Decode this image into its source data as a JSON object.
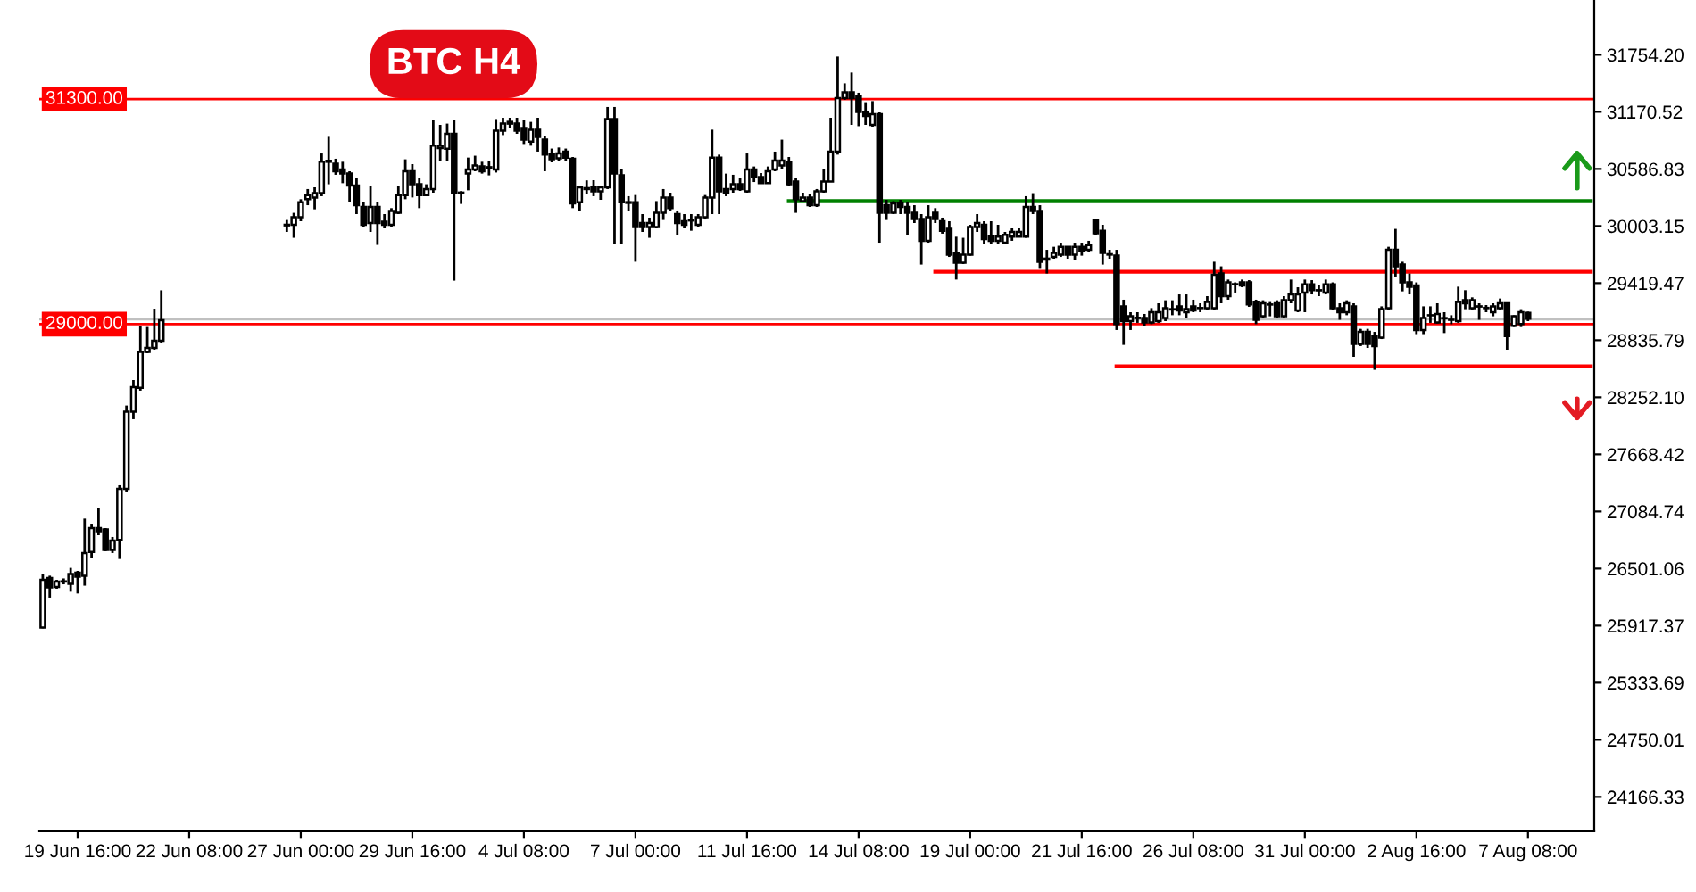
{
  "chart_data": {
    "type": "candlestick",
    "title": "BTC H4",
    "categories": [
      null,
      null,
      null,
      null,
      null,
      "19 Jun 16:00",
      null,
      null,
      null,
      null,
      null,
      null,
      null,
      null,
      null,
      null,
      null,
      null,
      null,
      null,
      null,
      "22 Jun 08:00",
      null,
      null,
      null,
      null,
      null,
      null,
      null,
      null,
      null,
      null,
      null,
      null,
      null,
      null,
      null,
      "27 Jun 00:00",
      null,
      null,
      null,
      null,
      null,
      null,
      null,
      null,
      null,
      null,
      null,
      null,
      null,
      null,
      null,
      "29 Jun 16:00",
      null,
      null,
      null,
      null,
      null,
      null,
      null,
      null,
      null,
      null,
      null,
      null,
      null,
      null,
      null,
      "4 Jul 08:00",
      null,
      null,
      null,
      null,
      null,
      null,
      null,
      null,
      null,
      null,
      null,
      null,
      null,
      null,
      null,
      "7 Jul 00:00",
      null,
      null,
      null,
      null,
      null,
      null,
      null,
      null,
      null,
      null,
      null,
      null,
      null,
      null,
      null,
      "11 Jul 16:00",
      null,
      null,
      null,
      null,
      null,
      null,
      null,
      null,
      null,
      null,
      null,
      null,
      null,
      null,
      null,
      "14 Jul 08:00",
      null,
      null,
      null,
      null,
      null,
      null,
      null,
      null,
      null,
      null,
      null,
      null,
      null,
      null,
      null,
      "19 Jul 00:00",
      null,
      null,
      null,
      null,
      null,
      null,
      null,
      null,
      null,
      null,
      null,
      null,
      null,
      null,
      null,
      "21 Jul 16:00",
      null,
      null,
      null,
      null,
      null,
      null,
      null,
      null,
      null,
      null,
      null,
      null,
      null,
      null,
      null,
      "26 Jul 08:00",
      null,
      null,
      null,
      null,
      null,
      null,
      null,
      null,
      null,
      null,
      null,
      null,
      null,
      null,
      null,
      "31 Jul 00:00",
      null,
      null,
      null,
      null,
      null,
      null,
      null,
      null,
      null,
      null,
      null,
      null,
      null,
      null,
      null,
      "2 Aug 16:00",
      null,
      null,
      null,
      null,
      null,
      null,
      null,
      null,
      null,
      null,
      null,
      null,
      null,
      null,
      null,
      "7 Aug 08:00",
      null,
      null,
      null,
      null,
      null,
      null,
      null,
      null,
      null
    ],
    "series": [
      {
        "color": "#000000",
        "ohlc": [
          [
            25899,
            26446,
            25890,
            26386
          ],
          [
            26404,
            26428,
            26204,
            26308
          ],
          [
            26313,
            26386,
            26295,
            26368
          ],
          [
            26368,
            26400,
            26340,
            26370
          ],
          [
            26344,
            26508,
            26264,
            26446
          ],
          [
            26459,
            26477,
            26246,
            26417
          ],
          [
            26428,
            27012,
            26326,
            26660
          ],
          [
            26672,
            26951,
            26605,
            26915
          ],
          [
            26915,
            27116,
            26842,
            26884
          ],
          [
            26902,
            26915,
            26679,
            26691
          ],
          [
            26691,
            26824,
            26660,
            26787
          ],
          [
            26793,
            27353,
            26599,
            27316
          ],
          [
            27316,
            28168,
            27280,
            28106
          ],
          [
            28106,
            28429,
            28028,
            28356
          ],
          [
            28350,
            28982,
            28320,
            28715
          ],
          [
            28715,
            28971,
            28703,
            28757
          ],
          [
            28757,
            29158,
            28739,
            28830
          ],
          [
            28830,
            29346,
            28812,
            29040
          ],
          null,
          null,
          null,
          null,
          null,
          null,
          null,
          null,
          null,
          null,
          null,
          null,
          null,
          null,
          null,
          null,
          null,
          [
            30010,
            30065,
            29943,
            30016
          ],
          [
            30016,
            30138,
            29883,
            30094
          ],
          [
            30094,
            30277,
            30052,
            30247
          ],
          [
            30277,
            30381,
            30216,
            30320
          ],
          [
            30295,
            30399,
            30174,
            30339
          ],
          [
            30339,
            30745,
            30308,
            30660
          ],
          [
            30660,
            30915,
            30430,
            30670
          ],
          [
            30641,
            30691,
            30527,
            30563
          ],
          [
            30581,
            30660,
            30441,
            30539
          ],
          [
            30539,
            30563,
            30247,
            30417
          ],
          [
            30417,
            30490,
            30125,
            30216
          ],
          [
            30198,
            30247,
            29992,
            30016
          ],
          [
            30034,
            30417,
            29943,
            30198
          ],
          [
            30198,
            30253,
            29810,
            30034
          ],
          [
            30047,
            30125,
            29979,
            30016
          ],
          [
            30016,
            30186,
            29992,
            30156
          ],
          [
            30138,
            30417,
            30125,
            30320
          ],
          [
            30320,
            30685,
            30277,
            30563
          ],
          [
            30563,
            30636,
            30295,
            30430
          ],
          [
            30430,
            30490,
            30186,
            30320
          ],
          [
            30320,
            30430,
            30308,
            30381
          ],
          [
            30381,
            31086,
            30344,
            30824
          ],
          [
            30800,
            31037,
            30672,
            30824
          ],
          [
            30794,
            31050,
            30672,
            30946
          ],
          [
            30946,
            31092,
            29445,
            30339
          ],
          [
            30339,
            30360,
            30229,
            30345
          ],
          [
            30539,
            30703,
            30368,
            30581
          ],
          [
            30581,
            30722,
            30563,
            30623
          ],
          [
            30612,
            30660,
            30539,
            30563
          ],
          [
            30599,
            30672,
            30521,
            30605
          ],
          [
            30581,
            31097,
            30550,
            30977
          ],
          [
            30977,
            31110,
            30933,
            31050
          ],
          [
            31068,
            31110,
            31010,
            31050
          ],
          [
            31050,
            31110,
            30946,
            30977
          ],
          [
            31006,
            31092,
            30842,
            30886
          ],
          [
            30867,
            31068,
            30824,
            30988
          ],
          [
            30988,
            31110,
            30764,
            30915
          ],
          [
            30886,
            30928,
            30563,
            30733
          ],
          [
            30733,
            30795,
            30654,
            30685
          ],
          [
            30696,
            30806,
            30672,
            30745
          ],
          [
            30764,
            30795,
            30672,
            30703
          ],
          [
            30691,
            30709,
            30186,
            30235
          ],
          [
            30247,
            30417,
            30156,
            30399
          ],
          [
            30381,
            30470,
            30330,
            30390
          ],
          [
            30399,
            30472,
            30308,
            30357
          ],
          [
            30357,
            30417,
            30271,
            30399
          ],
          [
            30399,
            31220,
            30381,
            31097
          ],
          [
            31097,
            31220,
            29821,
            30539
          ],
          [
            30521,
            30581,
            29821,
            30247
          ],
          [
            30247,
            30308,
            30156,
            30240
          ],
          [
            30247,
            30320,
            29638,
            29992
          ],
          [
            30034,
            30125,
            29943,
            29992
          ],
          [
            29992,
            30089,
            29883,
            30034
          ],
          [
            29992,
            30258,
            29979,
            30138
          ],
          [
            30138,
            30381,
            30065,
            30295
          ],
          [
            30295,
            30344,
            30162,
            30186
          ],
          [
            30125,
            30162,
            29912,
            30034
          ],
          [
            30052,
            30125,
            29979,
            30016
          ],
          [
            30065,
            30125,
            29955,
            30060
          ],
          [
            30016,
            30125,
            29992,
            30094
          ],
          [
            30094,
            30320,
            30070,
            30295
          ],
          [
            30295,
            30988,
            30125,
            30703
          ],
          [
            30703,
            30733,
            30125,
            30357
          ],
          [
            30381,
            30539,
            30308,
            30339
          ],
          [
            30381,
            30527,
            30344,
            30430
          ],
          [
            30430,
            30490,
            30362,
            30381
          ],
          [
            30357,
            30745,
            30344,
            30581
          ],
          [
            30581,
            30612,
            30453,
            30503
          ],
          [
            30503,
            30545,
            30435,
            30441
          ],
          [
            30441,
            30612,
            30435,
            30563
          ],
          [
            30581,
            30764,
            30563,
            30672
          ],
          [
            30623,
            30886,
            30581,
            30672
          ],
          [
            30660,
            30709,
            30417,
            30430
          ],
          [
            30459,
            30490,
            30138,
            30277
          ],
          [
            30258,
            30344,
            30247,
            30295
          ],
          [
            30295,
            30326,
            30198,
            30216
          ],
          [
            30216,
            30381,
            30198,
            30357
          ],
          [
            30357,
            30581,
            30344,
            30459
          ],
          [
            30459,
            31110,
            30453,
            30764
          ],
          [
            30764,
            31736,
            30733,
            31311
          ],
          [
            31311,
            31462,
            31293,
            31371
          ],
          [
            31371,
            31572,
            31037,
            31311
          ],
          [
            31329,
            31366,
            31024,
            31170
          ],
          [
            31170,
            31269,
            31037,
            31128
          ],
          [
            31037,
            31280,
            31019,
            31147
          ],
          [
            31147,
            31165,
            29833,
            30138
          ],
          [
            30216,
            30271,
            30065,
            30138
          ],
          [
            30138,
            30258,
            30125,
            30235
          ],
          [
            30235,
            30271,
            30125,
            30198
          ],
          [
            30198,
            30253,
            29912,
            30138
          ],
          [
            30138,
            30216,
            30034,
            30076
          ],
          [
            30076,
            30125,
            29609,
            29852
          ],
          [
            29852,
            30216,
            29833,
            30094
          ],
          [
            30138,
            30186,
            30034,
            30076
          ],
          [
            30052,
            30089,
            29925,
            29955
          ],
          [
            29974,
            30052,
            29687,
            29711
          ],
          [
            29729,
            29894,
            29456,
            29627
          ],
          [
            29627,
            29883,
            29615,
            29711
          ],
          [
            29711,
            30016,
            29700,
            29992
          ],
          [
            29992,
            30125,
            29943,
            30034
          ],
          [
            30016,
            30052,
            29821,
            29870
          ],
          [
            29894,
            30052,
            29815,
            29852
          ],
          [
            29852,
            30016,
            29815,
            29894
          ],
          [
            29834,
            29943,
            29815,
            29912
          ],
          [
            29894,
            29979,
            29852,
            29943
          ],
          [
            29894,
            29979,
            29888,
            29943
          ],
          [
            29894,
            30308,
            29883,
            30198
          ],
          [
            30198,
            30339,
            30125,
            30156
          ],
          [
            30156,
            30216,
            29565,
            29638
          ],
          [
            29670,
            29760,
            29518,
            29660
          ],
          [
            29687,
            29791,
            29669,
            29729
          ],
          [
            29711,
            29833,
            29687,
            29791
          ],
          [
            29791,
            29797,
            29669,
            29711
          ],
          [
            29711,
            29833,
            29651,
            29791
          ],
          [
            29791,
            29833,
            29700,
            29748
          ],
          [
            29760,
            29852,
            29742,
            29809
          ],
          [
            30065,
            30076,
            29906,
            29930
          ],
          [
            29955,
            30016,
            29609,
            29729
          ],
          [
            29711,
            29760,
            29669,
            29715
          ],
          [
            29700,
            29760,
            28940,
            29000
          ],
          [
            29182,
            29250,
            28788,
            29031
          ],
          [
            29031,
            29122,
            28940,
            29080
          ],
          [
            29062,
            29122,
            29013,
            29065
          ],
          [
            29062,
            29104,
            28976,
            29018
          ],
          [
            29018,
            29164,
            29000,
            29122
          ],
          [
            29031,
            29213,
            29013,
            29122
          ],
          [
            29062,
            29244,
            29031,
            29164
          ],
          [
            29150,
            29244,
            29091,
            29153
          ],
          [
            29182,
            29304,
            29091,
            29140
          ],
          [
            29122,
            29304,
            29062,
            29153
          ],
          [
            29182,
            29250,
            29122,
            29140
          ],
          [
            29165,
            29213,
            29122,
            29164
          ],
          [
            29164,
            29286,
            29140,
            29226
          ],
          [
            29164,
            29638,
            29140,
            29505
          ],
          [
            29518,
            29591,
            29213,
            29286
          ],
          [
            29286,
            29456,
            29250,
            29427
          ],
          [
            29409,
            29427,
            29323,
            29408
          ],
          [
            29427,
            29456,
            29377,
            29396
          ],
          [
            29427,
            29450,
            29177,
            29201
          ],
          [
            29226,
            29250,
            29000,
            29044
          ],
          [
            29080,
            29244,
            29062,
            29213
          ],
          [
            29200,
            29226,
            29080,
            29201
          ],
          [
            29213,
            29244,
            29067,
            29080
          ],
          [
            29080,
            29286,
            29062,
            29244
          ],
          [
            29244,
            29456,
            29213,
            29304
          ],
          [
            29140,
            29377,
            29122,
            29304
          ],
          [
            29323,
            29456,
            29122,
            29408
          ],
          [
            29408,
            29450,
            29304,
            29347
          ],
          [
            29347,
            29396,
            29286,
            29345
          ],
          [
            29323,
            29456,
            29304,
            29408
          ],
          [
            29408,
            29427,
            29140,
            29164
          ],
          [
            29164,
            29213,
            29044,
            29122
          ],
          [
            29122,
            29244,
            29091,
            29213
          ],
          [
            29182,
            29213,
            28666,
            28799
          ],
          [
            28799,
            28952,
            28776,
            28921
          ],
          [
            28921,
            28952,
            28757,
            28799
          ],
          [
            28879,
            28921,
            28533,
            28776
          ],
          [
            28861,
            29182,
            28848,
            29153
          ],
          [
            29164,
            29791,
            29140,
            29760
          ],
          [
            29760,
            29974,
            29487,
            29591
          ],
          [
            29609,
            29638,
            29335,
            29427
          ],
          [
            29427,
            29518,
            29304,
            29383
          ],
          [
            29396,
            29427,
            28898,
            28940
          ],
          [
            28940,
            29182,
            28898,
            29062
          ],
          [
            29090,
            29182,
            29013,
            29091
          ],
          [
            29018,
            29213,
            29007,
            29104
          ],
          [
            29062,
            29122,
            28909,
            29060
          ],
          [
            29044,
            29091,
            29000,
            29045
          ],
          [
            29031,
            29383,
            29013,
            29226
          ],
          [
            29244,
            29347,
            29153,
            29213
          ],
          [
            29164,
            29274,
            29140,
            29244
          ],
          [
            29182,
            29213,
            29044,
            29180
          ],
          [
            29164,
            29195,
            29122,
            29166
          ],
          [
            29122,
            29213,
            29080,
            29182
          ],
          [
            29164,
            29262,
            29140,
            29213
          ],
          [
            29213,
            29213,
            28739,
            28879
          ],
          [
            28982,
            29091,
            28970,
            29080
          ],
          [
            29000,
            29153,
            28970,
            29122
          ],
          [
            29116,
            29128,
            29031,
            29055
          ],
          null,
          null,
          null,
          null,
          null,
          null,
          null,
          null,
          null
        ]
      },
      {
        "type": "line",
        "color": "#008000",
        "values": [
          null,
          null,
          null,
          null,
          null,
          null,
          null,
          null,
          null,
          null,
          null,
          null,
          null,
          null,
          null,
          null,
          null,
          null,
          null,
          null,
          null,
          null,
          null,
          null,
          null,
          null,
          null,
          null,
          null,
          null,
          null,
          null,
          null,
          null,
          null,
          null,
          null,
          null,
          null,
          null,
          null,
          null,
          null,
          null,
          null,
          null,
          null,
          null,
          null,
          null,
          null,
          null,
          null,
          null,
          null,
          null,
          null,
          null,
          null,
          null,
          null,
          null,
          null,
          null,
          null,
          null,
          null,
          null,
          null,
          null,
          null,
          null,
          null,
          null,
          null,
          null,
          null,
          null,
          null,
          null,
          null,
          null,
          null,
          null,
          null,
          null,
          null,
          null,
          null,
          null,
          null,
          null,
          null,
          null,
          null,
          null,
          null,
          null,
          null,
          null,
          null,
          null,
          null,
          null,
          null,
          null,
          null,
          30258,
          30258,
          30258,
          30258,
          30258,
          30258,
          30258,
          30258,
          30258,
          30258,
          30258,
          30258,
          30258,
          30258,
          30258,
          30258,
          30258,
          30258,
          30258,
          30258,
          30258,
          30258,
          30258,
          30258,
          30258,
          30258,
          30258,
          30258,
          30258,
          30258,
          30258,
          30258,
          30258,
          30258,
          30258,
          30258,
          30258,
          30258,
          30258,
          30258,
          30258,
          30258,
          30258,
          30258,
          30258,
          30258,
          30258,
          30258,
          30258,
          30258,
          30258,
          30258,
          30258,
          30258,
          30258,
          30258,
          30258,
          30258,
          30258,
          30258,
          30258,
          30258,
          30258,
          30258,
          30258,
          30258,
          30258,
          30258,
          30258,
          30258,
          30258,
          30258,
          30258,
          30258,
          30258,
          30258,
          30258,
          30258,
          30258,
          30258,
          30258,
          30258,
          30258,
          30258,
          30258,
          30258,
          30258,
          30258,
          30258,
          30258,
          30258,
          30258,
          30258,
          30258,
          30258,
          30258,
          30258,
          30258,
          30258,
          30258,
          30258,
          30258,
          30258,
          30258,
          30258,
          30258,
          30258,
          30258,
          30258,
          30258,
          30258,
          30258,
          30258,
          30258,
          30258,
          30258
        ]
      },
      {
        "type": "line",
        "color": "#ff0000",
        "values": [
          null,
          null,
          null,
          null,
          null,
          null,
          null,
          null,
          null,
          null,
          null,
          null,
          null,
          null,
          null,
          null,
          null,
          null,
          null,
          null,
          null,
          null,
          null,
          null,
          null,
          null,
          null,
          null,
          null,
          null,
          null,
          null,
          null,
          null,
          null,
          null,
          null,
          null,
          null,
          null,
          null,
          null,
          null,
          null,
          null,
          null,
          null,
          null,
          null,
          null,
          null,
          null,
          null,
          null,
          null,
          null,
          null,
          null,
          null,
          null,
          null,
          null,
          null,
          null,
          null,
          null,
          null,
          null,
          null,
          null,
          null,
          null,
          null,
          null,
          null,
          null,
          null,
          null,
          null,
          null,
          null,
          null,
          null,
          null,
          null,
          null,
          null,
          null,
          null,
          null,
          null,
          null,
          null,
          null,
          null,
          null,
          null,
          null,
          null,
          null,
          null,
          null,
          null,
          null,
          null,
          null,
          null,
          null,
          null,
          null,
          null,
          null,
          null,
          null,
          null,
          null,
          null,
          null,
          null,
          null,
          null,
          null,
          null,
          null,
          null,
          null,
          null,
          null,
          29536,
          29536,
          29536,
          29536,
          29536,
          29536,
          29536,
          29536,
          29536,
          29536,
          29536,
          29536,
          29536,
          29536,
          29536,
          29536,
          29536,
          29536,
          29536,
          29536,
          29536,
          29536,
          29536,
          29536,
          29536,
          29536,
          29536,
          29536,
          29536,
          29536,
          29536,
          29536,
          29536,
          29536,
          29536,
          29536,
          29536,
          29536,
          29536,
          29536,
          29536,
          29536,
          29536,
          29536,
          29536,
          29536,
          29536,
          29536,
          29536,
          29536,
          29536,
          29536,
          29536,
          29536,
          29536,
          29536,
          29536,
          29536,
          29536,
          29536,
          29536,
          29536,
          29536,
          29536,
          29536,
          29536,
          29536,
          29536,
          29536,
          29536,
          29536,
          29536,
          29536,
          29536,
          29536,
          29536,
          29536,
          29536,
          29536,
          29536,
          29536,
          29536,
          29536,
          29536,
          29536,
          29536,
          29536,
          29536,
          29536,
          29536,
          29536,
          29536,
          29536,
          29536,
          29536
        ]
      },
      {
        "type": "line",
        "color": "#ff0000",
        "values": [
          null,
          null,
          null,
          null,
          null,
          null,
          null,
          null,
          null,
          null,
          null,
          null,
          null,
          null,
          null,
          null,
          null,
          null,
          null,
          null,
          null,
          null,
          null,
          null,
          null,
          null,
          null,
          null,
          null,
          null,
          null,
          null,
          null,
          null,
          null,
          null,
          null,
          null,
          null,
          null,
          null,
          null,
          null,
          null,
          null,
          null,
          null,
          null,
          null,
          null,
          null,
          null,
          null,
          null,
          null,
          null,
          null,
          null,
          null,
          null,
          null,
          null,
          null,
          null,
          null,
          null,
          null,
          null,
          null,
          null,
          null,
          null,
          null,
          null,
          null,
          null,
          null,
          null,
          null,
          null,
          null,
          null,
          null,
          null,
          null,
          null,
          null,
          null,
          null,
          null,
          null,
          null,
          null,
          null,
          null,
          null,
          null,
          null,
          null,
          null,
          null,
          null,
          null,
          null,
          null,
          null,
          null,
          null,
          null,
          null,
          null,
          null,
          null,
          null,
          null,
          null,
          null,
          null,
          null,
          null,
          null,
          null,
          null,
          null,
          null,
          null,
          null,
          null,
          null,
          null,
          null,
          null,
          null,
          null,
          null,
          null,
          null,
          null,
          null,
          null,
          null,
          null,
          null,
          null,
          null,
          null,
          null,
          null,
          null,
          null,
          null,
          null,
          null,
          null,
          28569,
          28569,
          28569,
          28569,
          28569,
          28569,
          28569,
          28569,
          28569,
          28569,
          28569,
          28569,
          28569,
          28569,
          28569,
          28569,
          28569,
          28569,
          28569,
          28569,
          28569,
          28569,
          28569,
          28569,
          28569,
          28569,
          28569,
          28569,
          28569,
          28569,
          28569,
          28569,
          28569,
          28569,
          28569,
          28569,
          28569,
          28569,
          28569,
          28569,
          28569,
          28569,
          28569,
          28569,
          28569,
          28569,
          28569,
          28569,
          28569,
          28569,
          28569,
          28569,
          28569,
          28569,
          28569,
          28569,
          28569,
          28569,
          28569,
          28569,
          28569,
          28569,
          28569,
          28569,
          28569,
          28569,
          28569,
          28569,
          28569
        ]
      }
    ],
    "ylim": [
      23814,
      32314
    ],
    "yticks": [
      24166.33,
      24750.01,
      25333.69,
      25917.37,
      26501.06,
      27084.74,
      27668.42,
      {
        "value": 28252.1,
        "label": "28252.10"
      },
      28835.79,
      29419.47,
      30003.15,
      30586.83,
      31170.52,
      {
        "value": 31754.2,
        "label": "31754.20"
      }
    ],
    "ref_lines": [
      {
        "axis": "y",
        "value": 31300,
        "label": "31300.00",
        "color": "#ff0000"
      },
      {
        "axis": "y",
        "value": 29000,
        "label": "29000.00",
        "color": "#ff0000"
      },
      {
        "axis": "y",
        "value": 29050,
        "color": "#c0c0c0"
      }
    ],
    "grid": false
  }
}
